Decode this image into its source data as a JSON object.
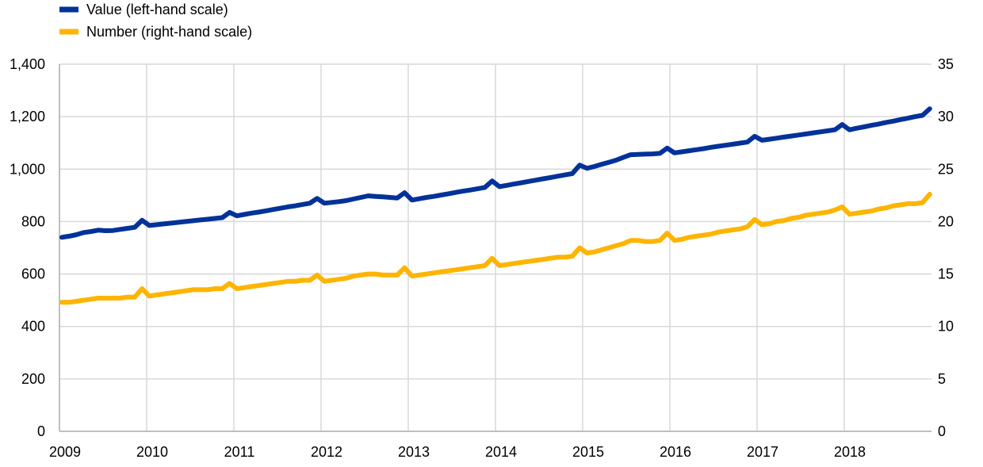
{
  "chart_data": {
    "type": "line",
    "title": "",
    "xlabel": "",
    "x_tick_labels": [
      "2009",
      "2010",
      "2011",
      "2012",
      "2013",
      "2014",
      "2015",
      "2016",
      "2017",
      "2018"
    ],
    "frequency": "monthly",
    "x_start": "2009-01",
    "y_left": {
      "ylim": [
        0,
        1400
      ],
      "ticks": [
        0,
        200,
        400,
        600,
        800,
        1000,
        1200,
        1400
      ],
      "tick_labels": [
        "0",
        "200",
        "400",
        "600",
        "800",
        "1,000",
        "1,200",
        "1,400"
      ]
    },
    "y_right": {
      "ylim": [
        0,
        35
      ],
      "ticks": [
        0,
        5,
        10,
        15,
        20,
        25,
        30,
        35
      ],
      "tick_labels": [
        "0",
        "5",
        "10",
        "15",
        "20",
        "25",
        "30",
        "35"
      ]
    },
    "grid": true,
    "legend_position": "top-left",
    "series": [
      {
        "name": "Value (left-hand scale)",
        "axis": "left",
        "color": "#003299",
        "values": [
          740,
          744,
          750,
          758,
          762,
          767,
          765,
          766,
          770,
          774,
          778,
          805,
          785,
          788,
          791,
          794,
          797,
          800,
          803,
          806,
          809,
          812,
          815,
          835,
          822,
          827,
          832,
          836,
          841,
          846,
          851,
          856,
          860,
          865,
          870,
          888,
          870,
          873,
          876,
          880,
          886,
          892,
          898,
          896,
          894,
          892,
          890,
          910,
          882,
          887,
          892,
          896,
          901,
          906,
          911,
          916,
          920,
          925,
          930,
          955,
          933,
          938,
          943,
          948,
          953,
          958,
          963,
          968,
          973,
          978,
          983,
          1015,
          1003,
          1010,
          1018,
          1026,
          1034,
          1045,
          1055,
          1056,
          1057,
          1058,
          1060,
          1080,
          1062,
          1066,
          1070,
          1074,
          1078,
          1083,
          1087,
          1091,
          1095,
          1099,
          1103,
          1125,
          1110,
          1114,
          1118,
          1122,
          1126,
          1130,
          1134,
          1138,
          1142,
          1146,
          1150,
          1170,
          1150,
          1156,
          1161,
          1167,
          1172,
          1178,
          1183,
          1189,
          1194,
          1200,
          1205,
          1230
        ]
      },
      {
        "name": "Number (right-hand scale)",
        "axis": "right",
        "color": "#FFB400",
        "values": [
          12.3,
          12.3,
          12.4,
          12.5,
          12.6,
          12.7,
          12.7,
          12.7,
          12.7,
          12.8,
          12.8,
          13.6,
          12.9,
          13.0,
          13.1,
          13.2,
          13.3,
          13.4,
          13.5,
          13.5,
          13.5,
          13.6,
          13.6,
          14.1,
          13.6,
          13.7,
          13.8,
          13.9,
          14.0,
          14.1,
          14.2,
          14.3,
          14.3,
          14.4,
          14.4,
          14.9,
          14.3,
          14.4,
          14.5,
          14.6,
          14.8,
          14.9,
          15.0,
          15.0,
          14.9,
          14.9,
          14.9,
          15.6,
          14.8,
          14.9,
          15.0,
          15.1,
          15.2,
          15.3,
          15.4,
          15.5,
          15.6,
          15.7,
          15.8,
          16.5,
          15.8,
          15.9,
          16.0,
          16.1,
          16.2,
          16.3,
          16.4,
          16.5,
          16.6,
          16.6,
          16.7,
          17.5,
          17.0,
          17.1,
          17.3,
          17.5,
          17.7,
          17.9,
          18.2,
          18.2,
          18.1,
          18.1,
          18.2,
          18.9,
          18.2,
          18.3,
          18.5,
          18.6,
          18.7,
          18.8,
          19.0,
          19.1,
          19.2,
          19.3,
          19.5,
          20.2,
          19.7,
          19.8,
          20.0,
          20.1,
          20.3,
          20.4,
          20.6,
          20.7,
          20.8,
          20.9,
          21.1,
          21.4,
          20.7,
          20.8,
          20.9,
          21.0,
          21.2,
          21.3,
          21.5,
          21.6,
          21.7,
          21.7,
          21.8,
          22.6
        ]
      }
    ]
  }
}
